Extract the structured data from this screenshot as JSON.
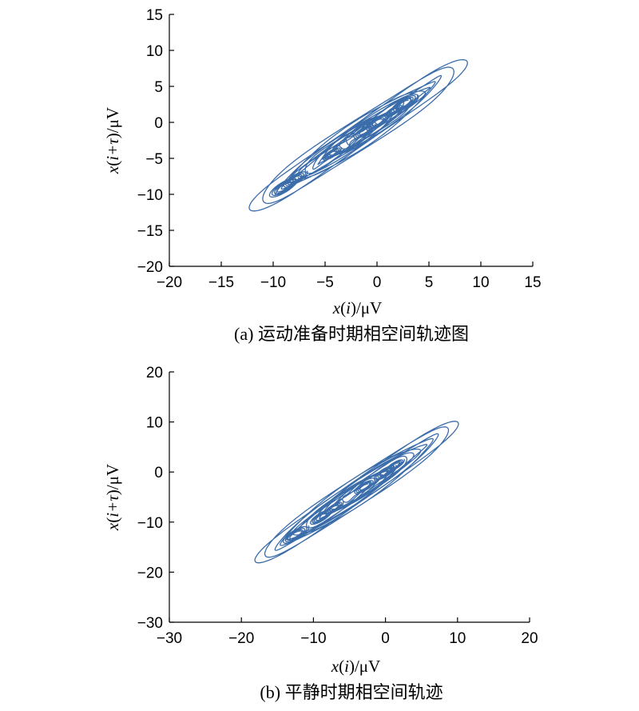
{
  "chart_data": [
    {
      "type": "line",
      "caption": "(a) 运动准备时期相空间轨迹图",
      "xlabel_var": "x",
      "xlabel_idx": "i",
      "xlabel_unit": "/μV",
      "ylabel_var": "x",
      "ylabel_idx": "i+τ",
      "ylabel_unit": "/μV",
      "xlim": [
        -20,
        15
      ],
      "ylim": [
        -20,
        15
      ],
      "xticks": [
        -20,
        -15,
        -10,
        -5,
        0,
        5,
        10,
        15
      ],
      "yticks": [
        -20,
        -15,
        -10,
        -5,
        0,
        5,
        10,
        15
      ],
      "xtick_labels": [
        "−20",
        "−15",
        "−10",
        "−5",
        "0",
        "5",
        "10",
        "15"
      ],
      "ytick_labels": [
        "−20",
        "−15",
        "−10",
        "−5",
        "0",
        "5",
        "10",
        "15"
      ],
      "color": "#3b6dab",
      "trajectory": {
        "center": [
          -1.8,
          -1.8
        ],
        "loops": [
          {
            "amp": 14.7,
            "width": 1.5,
            "phase": 0.8
          },
          {
            "amp": 13.0,
            "width": 1.9,
            "phase": 0.5
          },
          {
            "amp": 11.5,
            "width": 1.0,
            "phase": 0.2
          },
          {
            "amp": 10.5,
            "width": 1.4,
            "phase": 2.8
          },
          {
            "amp": 9.6,
            "width": 0.9,
            "phase": 0.3
          },
          {
            "amp": 8.8,
            "width": 1.2,
            "phase": 1.4
          },
          {
            "amp": 8.0,
            "width": 0.8,
            "phase": 2.9
          },
          {
            "amp": 7.2,
            "width": 1.0,
            "phase": 0.6
          },
          {
            "amp": 6.4,
            "width": 0.7,
            "phase": 2.1
          },
          {
            "amp": 5.6,
            "width": 0.8,
            "phase": 1.3
          },
          {
            "amp": 4.8,
            "width": 0.6,
            "phase": 0.2
          },
          {
            "amp": 4.0,
            "width": 0.7,
            "phase": 2.5
          },
          {
            "amp": 3.2,
            "width": 0.5,
            "phase": 1.8
          },
          {
            "amp": 2.4,
            "width": 0.5,
            "phase": 0.9
          },
          {
            "amp": 1.6,
            "width": 0.4,
            "phase": 2.6
          }
        ],
        "clusters": [
          {
            "c": -10.2,
            "r": 1.1
          },
          {
            "c": -8.6,
            "r": 0.9
          },
          {
            "c": -3.6,
            "r": 0.7
          },
          {
            "c": 0.8,
            "r": 0.8
          },
          {
            "c": 2.6,
            "r": 0.9
          },
          {
            "c": 6.2,
            "r": 1.0
          },
          {
            "c": 4.8,
            "r": 0.7
          }
        ]
      }
    },
    {
      "type": "line",
      "caption": "(b) 平静时期相空间轨迹",
      "xlabel_var": "x",
      "xlabel_idx": "i",
      "xlabel_unit": "/μV",
      "ylabel_var": "x",
      "ylabel_idx": "i+τ",
      "ylabel_unit": "/μV",
      "xlim": [
        -30,
        20
      ],
      "ylim": [
        -30,
        20
      ],
      "xticks": [
        -30,
        -20,
        -10,
        0,
        10,
        20
      ],
      "yticks": [
        -30,
        -20,
        -10,
        0,
        10,
        20
      ],
      "xtick_labels": [
        "−30",
        "−20",
        "−10",
        "0",
        "10",
        "20"
      ],
      "ytick_labels": [
        "−30",
        "−20",
        "−10",
        "0",
        "10",
        "20"
      ],
      "color": "#3b6dab",
      "trajectory": {
        "center": [
          -4.0,
          -4.0
        ],
        "loops": [
          {
            "amp": 19.8,
            "width": 2.0,
            "phase": 0.8
          },
          {
            "amp": 18.0,
            "width": 2.4,
            "phase": 0.4
          },
          {
            "amp": 16.2,
            "width": 1.6,
            "phase": 2.9
          },
          {
            "amp": 15.0,
            "width": 2.0,
            "phase": 1.1
          },
          {
            "amp": 13.6,
            "width": 1.4,
            "phase": 0.2
          },
          {
            "amp": 12.2,
            "width": 1.7,
            "phase": 2.3
          },
          {
            "amp": 11.0,
            "width": 1.2,
            "phase": 1.6
          },
          {
            "amp": 9.8,
            "width": 1.4,
            "phase": 0.7
          },
          {
            "amp": 8.6,
            "width": 1.0,
            "phase": 2.7
          },
          {
            "amp": 7.4,
            "width": 1.1,
            "phase": 1.2
          },
          {
            "amp": 6.2,
            "width": 0.9,
            "phase": 0.3
          },
          {
            "amp": 5.0,
            "width": 0.8,
            "phase": 2.0
          },
          {
            "amp": 3.8,
            "width": 0.7,
            "phase": 1.5
          },
          {
            "amp": 2.6,
            "width": 0.6,
            "phase": 0.5
          }
        ],
        "clusters": [
          {
            "c": -12.0,
            "r": 1.4
          },
          {
            "c": -7.0,
            "r": 1.2
          },
          {
            "c": -4.5,
            "r": 1.0
          },
          {
            "c": 1.5,
            "r": 1.1
          },
          {
            "c": 5.5,
            "r": 1.2
          },
          {
            "c": 7.5,
            "r": 1.0
          }
        ]
      }
    }
  ]
}
